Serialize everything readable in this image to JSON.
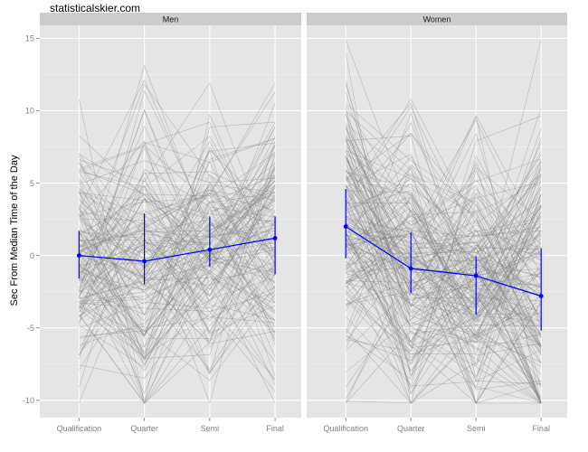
{
  "watermark": "statisticalskier.com",
  "chart_data": {
    "type": "line",
    "ylabel": "Sec From Median Time of the Day",
    "xlabel": "",
    "categories": [
      "Qualification",
      "Quarter",
      "Semi",
      "Final"
    ],
    "ylim": [
      -11.2,
      15.9
    ],
    "yticks": [
      -10,
      -5,
      0,
      5,
      10,
      15
    ],
    "grid": true,
    "panels": [
      {
        "name": "Men",
        "series": [
          {
            "values": [
              0.0,
              -0.4,
              0.4,
              1.2
            ],
            "lower": [
              -1.6,
              -2.0,
              -0.8,
              -1.3
            ],
            "upper": [
              1.7,
              2.9,
              2.7,
              2.7
            ],
            "color": "#0000ff"
          }
        ]
      },
      {
        "name": "Women",
        "series": [
          {
            "values": [
              2.0,
              -0.9,
              -1.4,
              -2.8
            ],
            "lower": [
              -0.2,
              -2.6,
              -4.1,
              -5.2
            ],
            "upper": [
              4.6,
              1.6,
              -0.1,
              0.5
            ],
            "color": "#0000ff"
          }
        ]
      }
    ],
    "background_lines_color": "#7f7f7f"
  }
}
